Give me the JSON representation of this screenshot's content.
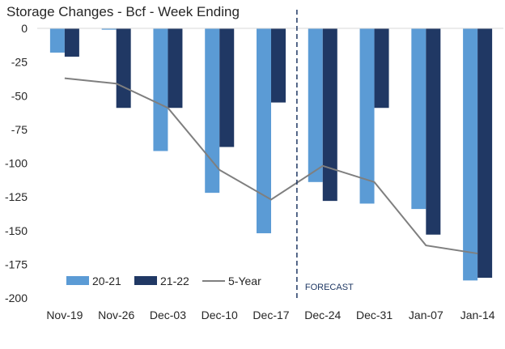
{
  "chart_data": {
    "type": "bar",
    "title": "Storage Changes - Bcf - Week Ending",
    "categories": [
      "Nov-19",
      "Nov-26",
      "Dec-03",
      "Dec-10",
      "Dec-17",
      "Dec-24",
      "Dec-31",
      "Jan-07",
      "Jan-14"
    ],
    "series": [
      {
        "name": "20-21",
        "type": "bar",
        "color": "#5b9bd5",
        "values": [
          -18,
          -1,
          -91,
          -122,
          -152,
          -114,
          -130,
          -134,
          -187
        ]
      },
      {
        "name": "21-22",
        "type": "bar",
        "color": "#203864",
        "values": [
          -21,
          -59,
          -59,
          -88,
          -55,
          -128,
          -59,
          -153,
          -185
        ]
      },
      {
        "name": "5-Year",
        "type": "line",
        "color": "#7f7f7f",
        "values": [
          -37,
          -41,
          -59,
          -105,
          -127,
          -102,
          -114,
          -161,
          -167
        ]
      }
    ],
    "ylim": [
      -200,
      0
    ],
    "yticks": [
      0,
      -25,
      -50,
      -75,
      -100,
      -125,
      -150,
      -175,
      -200
    ],
    "annotation": "FORECAST",
    "annotation_divider_after": "Dec-17",
    "legend_position": "bottom-left"
  }
}
